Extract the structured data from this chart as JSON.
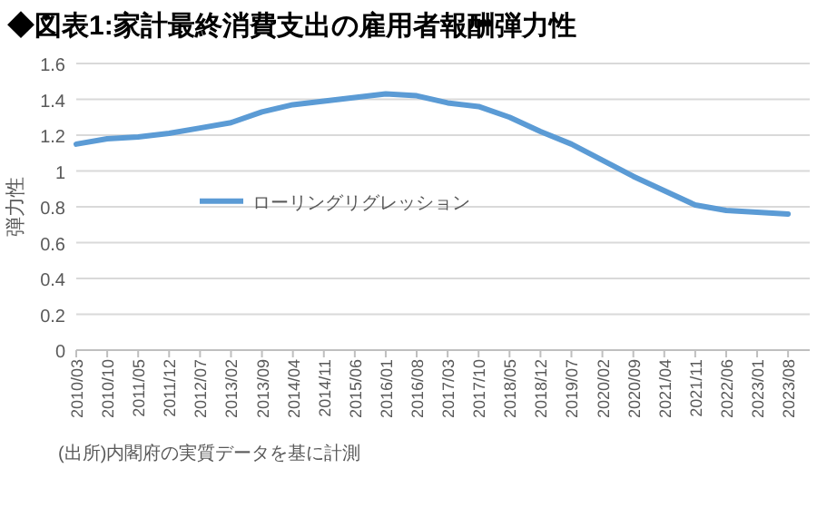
{
  "chart_data": {
    "type": "line",
    "title": "◆図表1:家計最終消費支出の雇用者報酬弾力性",
    "ylabel": "弾力性",
    "categories": [
      "2010/03",
      "2010/10",
      "2011/05",
      "2011/12",
      "2012/07",
      "2013/02",
      "2013/09",
      "2014/04",
      "2014/11",
      "2015/06",
      "2016/01",
      "2016/08",
      "2017/03",
      "2017/10",
      "2018/05",
      "2018/12",
      "2019/07",
      "2020/02",
      "2020/09",
      "2021/04",
      "2021/11",
      "2022/06",
      "2023/01",
      "2023/08"
    ],
    "series": [
      {
        "name": "ローリングリグレッション",
        "color": "#5b9bd5",
        "values": [
          1.15,
          1.18,
          1.19,
          1.21,
          1.24,
          1.27,
          1.33,
          1.37,
          1.39,
          1.41,
          1.43,
          1.42,
          1.38,
          1.36,
          1.3,
          1.22,
          1.15,
          1.06,
          0.97,
          0.89,
          0.81,
          0.78,
          0.77,
          0.76
        ]
      }
    ],
    "ylim": [
      0,
      1.6
    ],
    "yticks": [
      0,
      0.2,
      0.4,
      0.6,
      0.8,
      1,
      1.2,
      1.4,
      1.6
    ],
    "grid": "y",
    "legend": "center",
    "annotations": [
      "(出所)内閣府の実質データを基に計測"
    ]
  }
}
